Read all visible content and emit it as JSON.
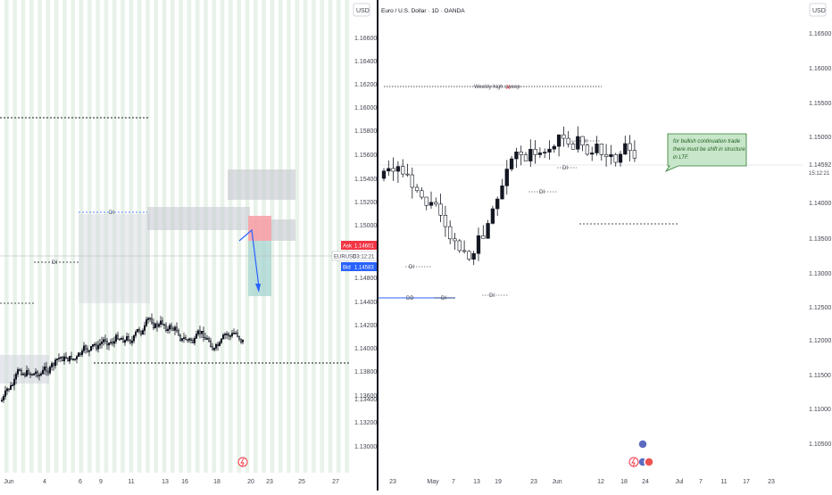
{
  "left_chart": {
    "currency_label": "USD",
    "y_ticks": [
      "1.16600",
      "1.16400",
      "1.16200",
      "1.16000",
      "1.15800",
      "1.15600",
      "1.15400",
      "1.15200",
      "1.15000",
      "1.14800",
      "1.14400",
      "1.14200",
      "1.14000",
      "1.13800",
      "1.13600",
      "1.13400",
      "1.13200",
      "1.13000"
    ],
    "x_ticks": [
      "Jun",
      "4",
      "6",
      "9",
      "11",
      "13",
      "16",
      "18",
      "20",
      "23",
      "25",
      "27"
    ],
    "di_labels": [
      "DI",
      "DI"
    ],
    "symbol": "EURUSD",
    "countdown": "03:12:21",
    "ask_label": "Ask",
    "ask_value": "1.14601",
    "bid_label": "Bid",
    "bid_value": "1.14583",
    "colors": {
      "up": "#131722",
      "down": "#ffffff",
      "ask": "#f23645",
      "bid": "#2962ff"
    }
  },
  "right_chart": {
    "currency_label": "USD",
    "title": "Euro / U.S. Dollar · 1D · OANDA",
    "y_ticks": [
      "1.16500",
      "1.16000",
      "1.15500",
      "1.15000",
      "1.14000",
      "1.13500",
      "1.13000",
      "1.12500",
      "1.12000",
      "1.11500",
      "1.11000",
      "1.10500"
    ],
    "x_ticks": [
      "23",
      "May",
      "7",
      "13",
      "19",
      "23",
      "Jun",
      "12",
      "18",
      "24",
      "Jul",
      "7",
      "11",
      "17",
      "23"
    ],
    "price_value": "1.14592",
    "price_countdown": "15:12:21",
    "sweep_label": "Weekly high sweep",
    "sweep_mark": "X",
    "db_label": "DB",
    "di_labels": [
      "DI",
      "DI",
      "DI",
      "DI",
      "DI",
      "DI"
    ],
    "note": [
      "for bullish continuation trade",
      "there must be shift in structure",
      "in LTF."
    ],
    "colors": {
      "up": "#131722",
      "down": "#ffffff",
      "note_bg": "#c8e6c9",
      "note_border": "#2e7d32",
      "db_line": "#2962ff"
    }
  }
}
